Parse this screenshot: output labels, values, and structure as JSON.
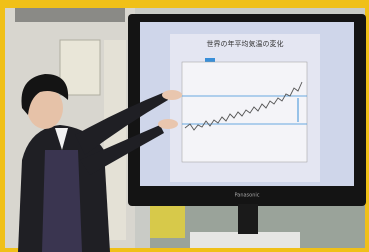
{
  "scene": {
    "screen_title": "世界の年平均気温の変化",
    "brand": "Panasonic"
  }
}
